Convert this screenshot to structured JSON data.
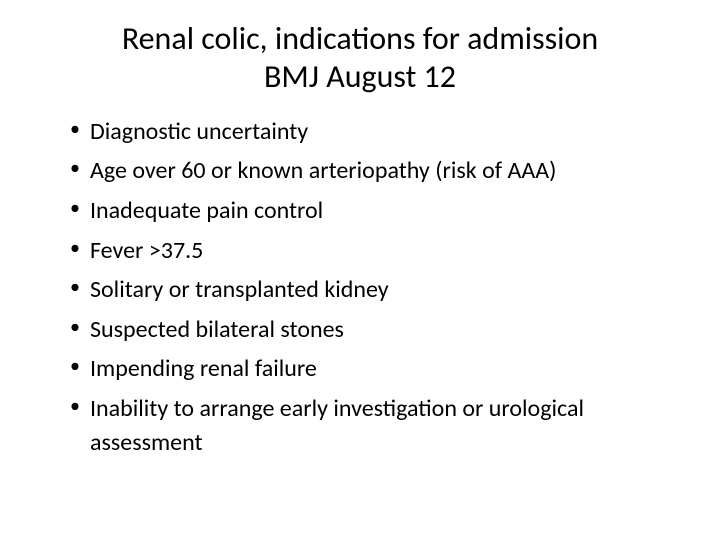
{
  "slide": {
    "title_line1": "Renal colic, indications for admission",
    "title_line2": "BMJ August 12",
    "bullets": [
      "Diagnostic uncertainty",
      "Age over 60 or known arteriopathy (risk of AAA)",
      "Inadequate pain control",
      "Fever >37.5",
      "Solitary or transplanted kidney",
      "Suspected bilateral stones",
      "Impending renal failure",
      "Inability to arrange early investigation or urological assessment"
    ],
    "background_color": "#ffffff",
    "text_color": "#000000",
    "title_fontsize": 32,
    "bullet_fontsize": 24,
    "font_family": "Calibri"
  }
}
